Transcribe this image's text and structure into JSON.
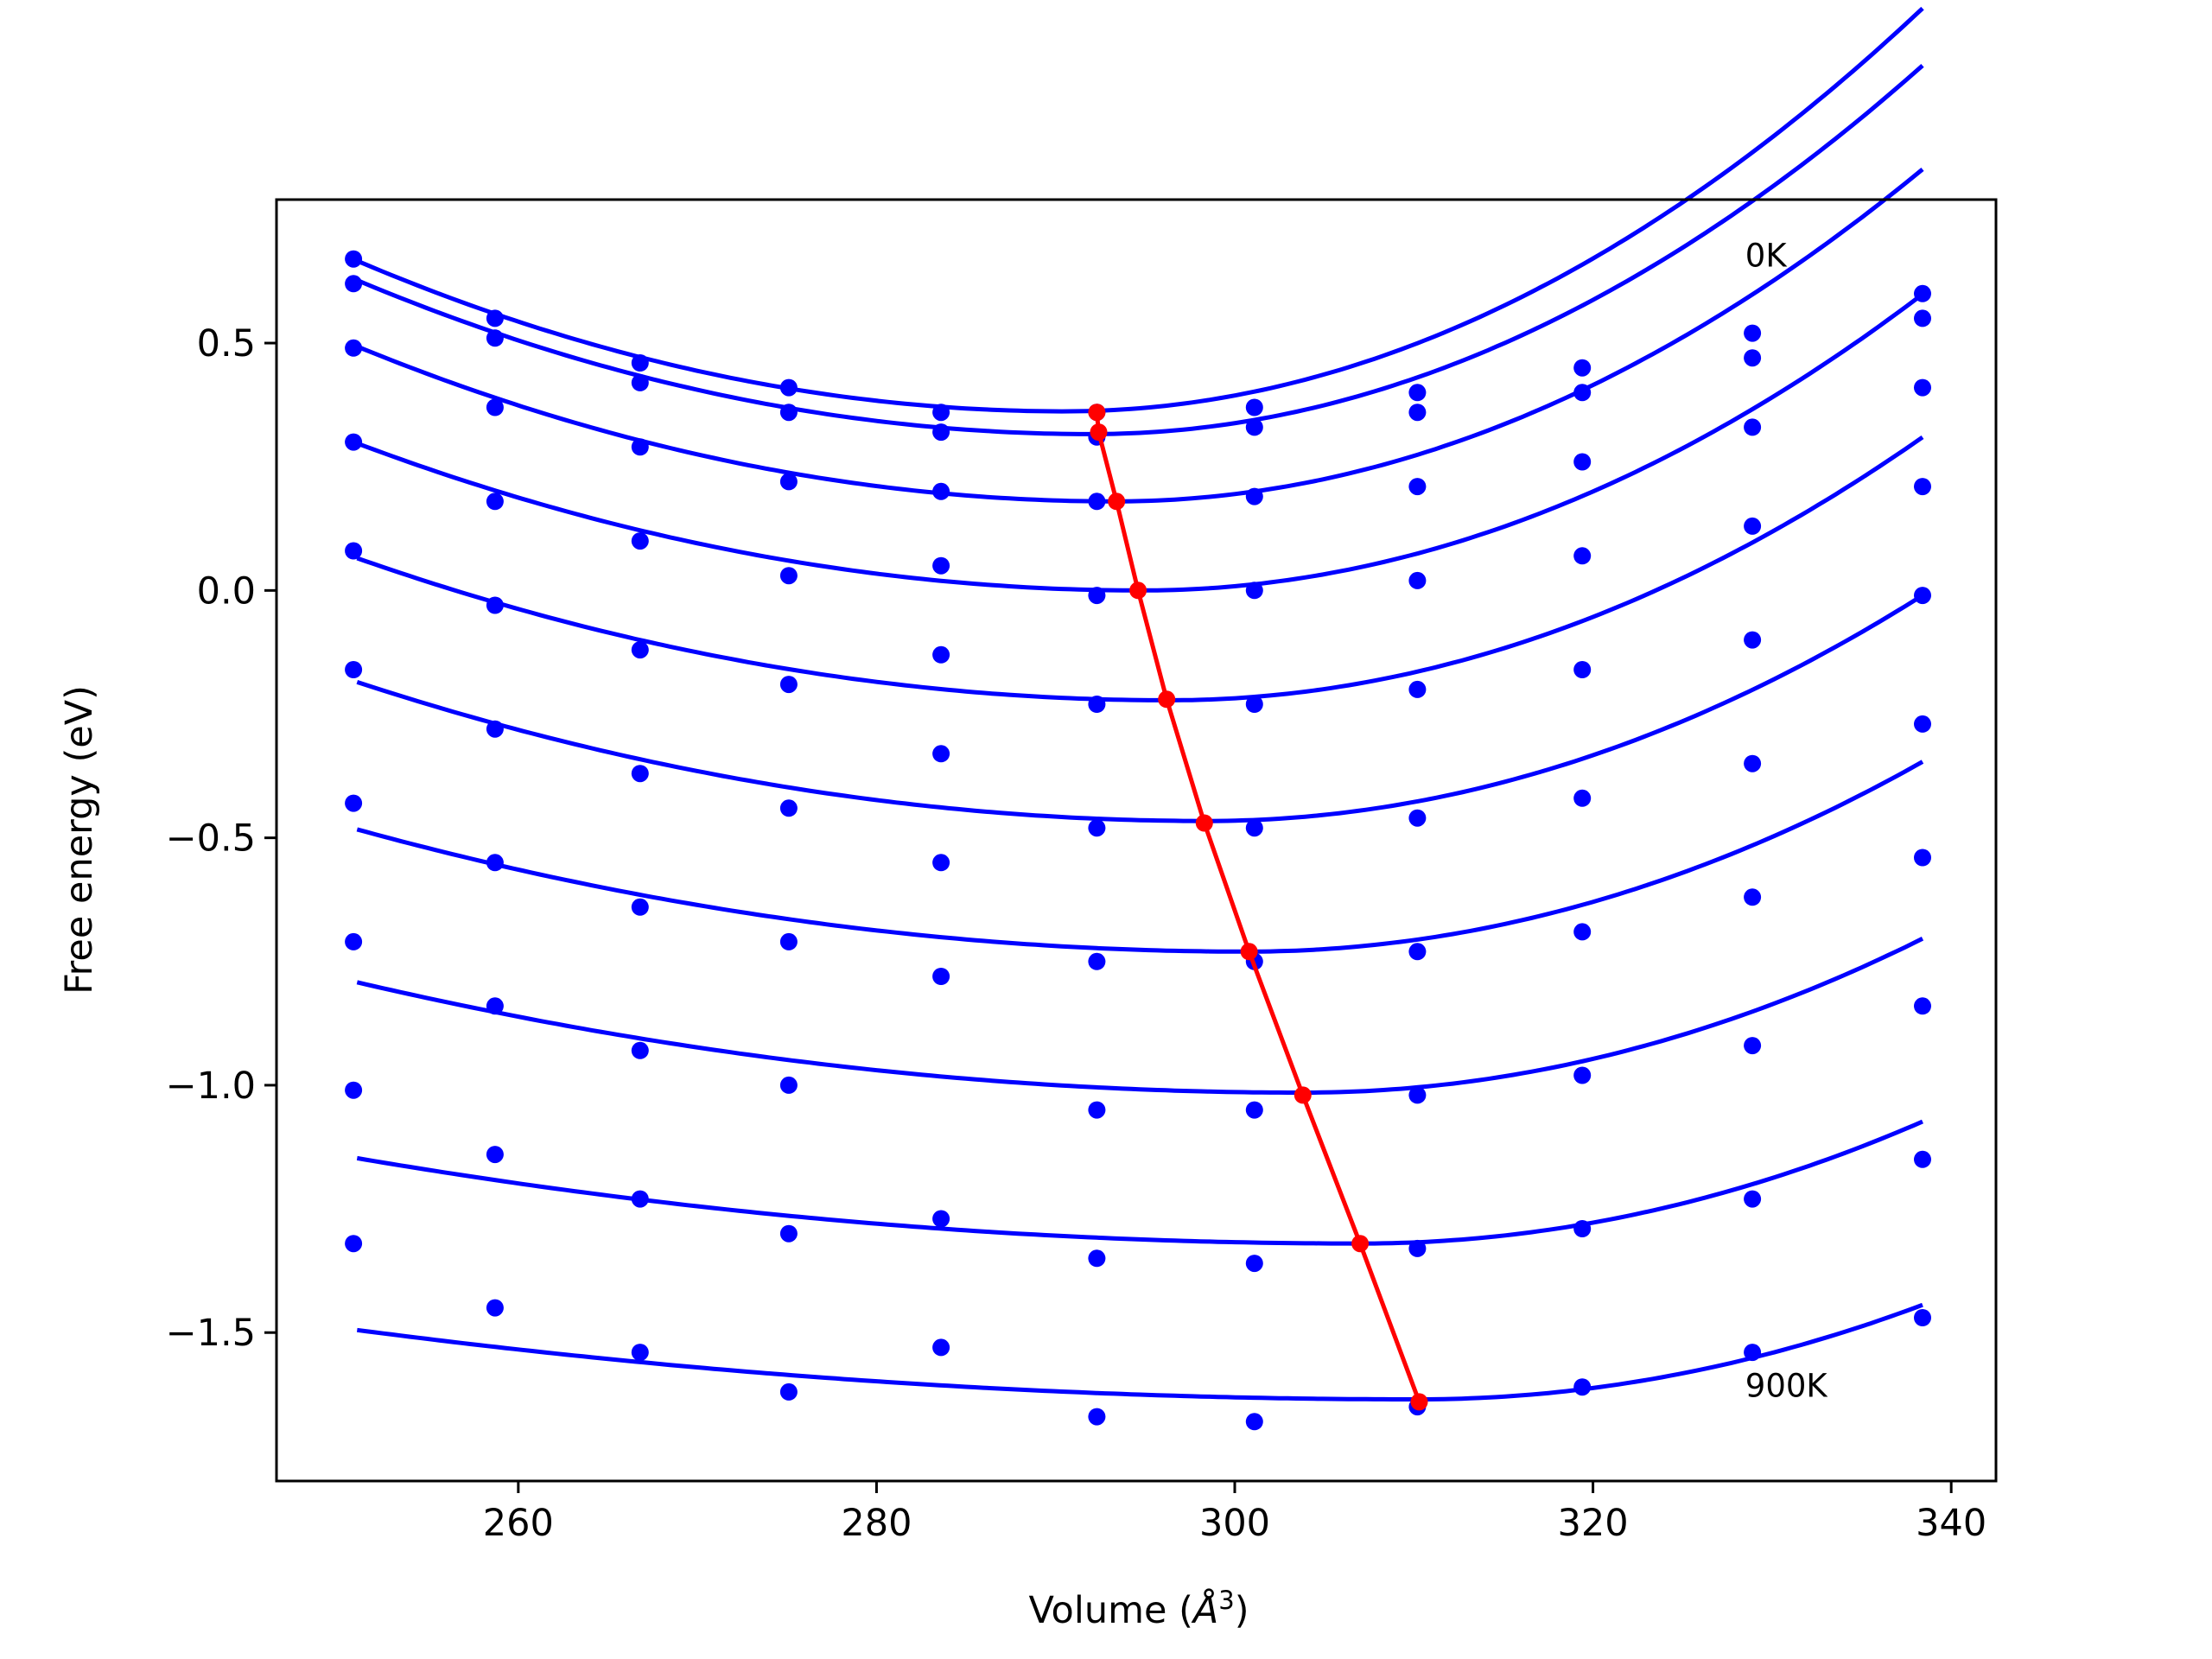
{
  "chart_data": {
    "type": "scatter",
    "title": "",
    "xlabel": "Volume (",
    "xlabel_symbol": "Å",
    "xlabel_exponent": "3",
    "xlabel_end": ")",
    "ylabel": "Free energy (eV)",
    "xlim": [
      246.5,
      342.5
    ],
    "ylim": [
      -1.8,
      0.79
    ],
    "x_ticks": [
      260,
      280,
      300,
      320,
      340
    ],
    "x_tick_labels": [
      "260",
      "280",
      "300",
      "320",
      "340"
    ],
    "y_ticks": [
      -1.5,
      -1.0,
      -0.5,
      0.0,
      0.5
    ],
    "y_tick_labels": [
      "−1.5",
      "−1.0",
      "−0.5",
      "0.0",
      "0.5"
    ],
    "grid": false,
    "volumes": [
      250.8,
      258.7,
      266.8,
      275.1,
      283.6,
      292.3,
      301.1,
      310.2,
      319.4,
      328.9,
      338.4
    ],
    "series": [
      {
        "values": [
          0.67,
          0.55,
          0.46,
          0.41,
          0.36,
          0.36,
          0.37,
          0.4,
          0.45,
          0.52,
          0.6
        ],
        "fit": {
          "vmin": 290.5,
          "emin": 0.362,
          "a_left": 0.000195,
          "a_right": 0.000355
        }
      },
      {
        "values": [
          0.62,
          0.51,
          0.42,
          0.36,
          0.32,
          0.31,
          0.33,
          0.36,
          0.4,
          0.47,
          0.55
        ],
        "fit": {
          "vmin": 292.0,
          "emin": 0.316,
          "a_left": 0.000185,
          "a_right": 0.000346
        }
      },
      {
        "values": [
          0.49,
          0.37,
          0.29,
          0.22,
          0.2,
          0.18,
          0.19,
          0.21,
          0.26,
          0.33,
          0.41
        ],
        "fit": {
          "vmin": 293.3,
          "emin": 0.18,
          "a_left": 0.000175,
          "a_right": 0.00033
        }
      },
      {
        "values": [
          0.3,
          0.18,
          0.1,
          0.03,
          0.05,
          -0.01,
          0.0,
          0.02,
          0.07,
          0.13,
          0.21
        ],
        "fit": {
          "vmin": 294.8,
          "emin": 0.0,
          "a_left": 0.000155,
          "a_right": 0.000315
        }
      },
      {
        "values": [
          0.08,
          -0.03,
          -0.12,
          -0.19,
          -0.13,
          -0.23,
          -0.23,
          -0.2,
          -0.16,
          -0.1,
          -0.01
        ],
        "fit": {
          "vmin": 296.3,
          "emin": -0.222,
          "a_left": 0.00014,
          "a_right": 0.0003
        }
      },
      {
        "values": [
          -0.16,
          -0.28,
          -0.37,
          -0.44,
          -0.33,
          -0.48,
          -0.48,
          -0.46,
          -0.42,
          -0.35,
          -0.27
        ],
        "fit": {
          "vmin": 298.4,
          "emin": -0.466,
          "a_left": 0.000125,
          "a_right": 0.000285
        }
      },
      {
        "values": [
          -0.43,
          -0.55,
          -0.64,
          -0.71,
          -0.55,
          -0.75,
          -0.75,
          -0.73,
          -0.69,
          -0.62,
          -0.54
        ],
        "fit": {
          "vmin": 300.7,
          "emin": -0.73,
          "a_left": 0.0001,
          "a_right": 0.00027
        }
      },
      {
        "values": [
          -0.71,
          -0.84,
          -0.93,
          -1.0,
          -0.78,
          -1.05,
          -1.05,
          -1.02,
          -0.98,
          -0.92,
          -0.84
        ],
        "fit": {
          "vmin": 303.8,
          "emin": -1.015,
          "a_left": 8e-05,
          "a_right": 0.00026
        }
      },
      {
        "values": [
          -1.01,
          -1.14,
          -1.23,
          -1.3,
          -1.27,
          -1.35,
          -1.36,
          -1.33,
          -1.29,
          -1.23,
          -1.15
        ],
        "fit": {
          "vmin": 307.0,
          "emin": -1.32,
          "a_left": 5.5e-05,
          "a_right": 0.00025
        }
      },
      {
        "values": [
          -1.32,
          -1.45,
          -1.54,
          -1.62,
          -1.53,
          -1.67,
          -1.68,
          -1.65,
          -1.61,
          -1.54,
          -1.47
        ],
        "fit": {
          "vmin": 310.2,
          "emin": -1.635,
          "a_left": 4e-05,
          "a_right": 0.00024
        }
      }
    ],
    "fit_x_start": 251.0,
    "minimum_line": {
      "x": [
        292.3,
        292.4,
        293.4,
        294.6,
        296.2,
        298.3,
        300.8,
        303.8,
        307.0,
        310.3
      ],
      "y": [
        0.36,
        0.32,
        0.18,
        0.0,
        -0.22,
        -0.47,
        -0.73,
        -1.02,
        -1.32,
        -1.64
      ]
    },
    "annotations": [
      {
        "text": "0K",
        "x": 328.5,
        "y": 0.655
      },
      {
        "text": "900K",
        "x": 328.5,
        "y": -1.63
      }
    ],
    "colors": {
      "points": "#0000ff",
      "fit": "#0000ff",
      "minimum_line": "#ff0000",
      "axes": "#000000"
    }
  }
}
